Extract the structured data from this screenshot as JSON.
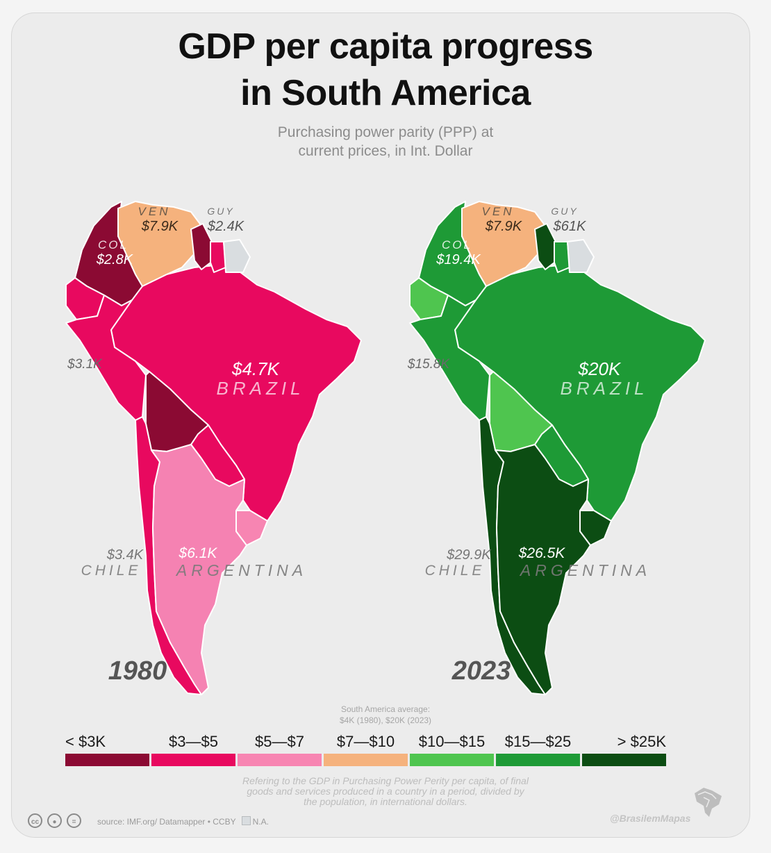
{
  "title_line1": "GDP per capita progress",
  "title_line2": "in South America",
  "subtitle_line1": "Purchasing power parity (PPP) at",
  "subtitle_line2": "current prices, in Int. Dollar",
  "maps": [
    {
      "year": "1980",
      "labels": {
        "ven_code": "VEN",
        "ven_value": "$7.9K",
        "guy_code": "GUY",
        "guy_value": "$2.4K",
        "col_code": "COL",
        "col_value": "$2.8K",
        "peru_value": "$3.1K",
        "brazil_value": "$4.7K",
        "brazil_name": "BRAZIL",
        "chile_value": "$3.4K",
        "chile_name": "CHILE",
        "argentina_value": "$6.1K",
        "argentina_name": "ARGENTINA"
      },
      "colors": {
        "colombia": "#8b0a33",
        "venezuela": "#f5b27d",
        "guyana": "#8b0a33",
        "suriname": "#e8095f",
        "french_guiana": "#d9dde0",
        "ecuador": "#e8095f",
        "peru": "#e8095f",
        "brazil": "#e8095f",
        "bolivia": "#8b0a33",
        "paraguay": "#e8095f",
        "chile": "#e8095f",
        "argentina": "#f582b2",
        "uruguay": "#f785b2"
      }
    },
    {
      "year": "2023",
      "labels": {
        "ven_code": "VEN",
        "ven_value": "$7.9K",
        "guy_code": "GUY",
        "guy_value": "$61K",
        "col_code": "COL",
        "col_value": "$19.4K",
        "peru_value": "$15.8K",
        "brazil_value": "$20K",
        "brazil_name": "BRAZIL",
        "chile_value": "$29.9K",
        "chile_name": "CHILE",
        "argentina_value": "$26.5K",
        "argentina_name": "ARGENTINA"
      },
      "colors": {
        "colombia": "#1e9a36",
        "venezuela": "#f5b27d",
        "guyana": "#0c4d13",
        "suriname": "#1e9a36",
        "french_guiana": "#d9dde0",
        "ecuador": "#4fc54f",
        "peru": "#1e9a36",
        "brazil": "#1e9a36",
        "bolivia": "#4fc54f",
        "paraguay": "#1e9a36",
        "chile": "#0c4d13",
        "argentina": "#0c4d13",
        "uruguay": "#0c4d13"
      }
    }
  ],
  "average": {
    "line1": "South America average:",
    "line2": "$4K (1980), $20K (2023)"
  },
  "legend": [
    {
      "label": "< $3K",
      "color": "#8b0a33"
    },
    {
      "label": "$3—$5",
      "color": "#e8095f"
    },
    {
      "label": "$5—$7",
      "color": "#f785b2"
    },
    {
      "label": "$7—$10",
      "color": "#f5b27d"
    },
    {
      "label": "$10—$15",
      "color": "#4fc54f"
    },
    {
      "label": "$15—$25",
      "color": "#1e9a36"
    },
    {
      "label": "> $25K",
      "color": "#0c4d13"
    }
  ],
  "definition": {
    "line1": "Refering to the GDP in Purchasing Power Perity per capita, of final",
    "line2": "goods and services produced in a country in a period, divided by",
    "line3": "the population, in international dollars."
  },
  "source": "source: IMF.org/ Datamapper • CCBY",
  "na_label": "N.A.",
  "handle": "@BrasilemMapas",
  "license_icons": [
    "cc-icon",
    "by-icon",
    "nd-icon"
  ]
}
